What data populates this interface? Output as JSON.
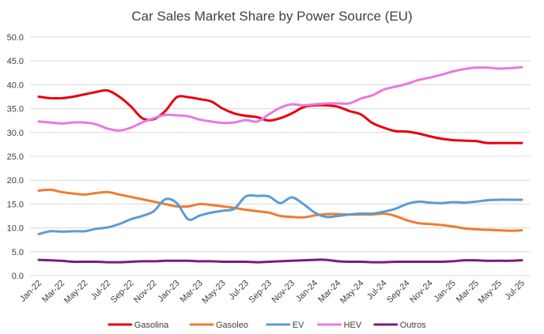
{
  "chart_data": {
    "type": "line",
    "title": "Car Sales Market Share by Power Source (EU)",
    "xlabel": "",
    "ylabel": "",
    "ylim": [
      0,
      50
    ],
    "yticks": [
      "0.0",
      "5.0",
      "10.0",
      "15.0",
      "20.0",
      "25.0",
      "30.0",
      "35.0",
      "40.0",
      "45.0",
      "50.0"
    ],
    "grid": true,
    "legend_position": "bottom",
    "x": [
      "Jan-22",
      "Feb-22",
      "Mar-22",
      "Apr-22",
      "May-22",
      "Jun-22",
      "Jul-22",
      "Aug-22",
      "Sep-22",
      "Oct-22",
      "Nov-22",
      "Dec-22",
      "Jan-23",
      "Feb-23",
      "Mar-23",
      "Apr-23",
      "May-23",
      "Jun-23",
      "Jul-23",
      "Aug-23",
      "Sep-23",
      "Oct-23",
      "Nov-23",
      "Dec-23",
      "Jan-24",
      "Feb-24",
      "Mar-24",
      "Apr-24",
      "May-24",
      "Jun-24",
      "Jul-24",
      "Aug-24",
      "Sep-24",
      "Oct-24",
      "Nov-24",
      "Dec-24",
      "Jan-25",
      "Feb-25",
      "Mar-25",
      "Apr-25",
      "May-25",
      "Jun-25",
      "Jul-25"
    ],
    "x_tick_labels": [
      "Jan-22",
      "Mar-22",
      "May-22",
      "Jul-22",
      "Sep-22",
      "Nov-22",
      "Jan-23",
      "Mar-23",
      "May-23",
      "Jul-23",
      "Sep-23",
      "Nov-23",
      "Jan-24",
      "Mar-24",
      "May-24",
      "Jul-24",
      "Sep-24",
      "Nov-24",
      "Jan-25",
      "Mar-25",
      "May-25",
      "Jul-25"
    ],
    "series": [
      {
        "name": "Gasolina",
        "color": "#e8000b",
        "values": [
          37.5,
          37.2,
          37.2,
          37.5,
          38.0,
          38.5,
          38.8,
          37.5,
          35.5,
          33.0,
          32.8,
          34.5,
          37.4,
          37.4,
          37.0,
          36.5,
          35.0,
          34.0,
          33.5,
          33.2,
          32.5,
          33.0,
          34.0,
          35.3,
          35.7,
          35.7,
          35.4,
          34.5,
          33.8,
          32.0,
          31.0,
          30.3,
          30.2,
          29.8,
          29.2,
          28.7,
          28.4,
          28.3,
          28.2,
          27.8,
          27.8,
          27.8,
          27.8
        ]
      },
      {
        "name": "Gasoleo",
        "color": "#ed7d31",
        "values": [
          17.8,
          18.0,
          17.5,
          17.2,
          17.0,
          17.3,
          17.5,
          17.0,
          16.5,
          16.0,
          15.5,
          15.0,
          14.5,
          14.5,
          15.0,
          14.8,
          14.5,
          14.2,
          13.8,
          13.5,
          13.2,
          12.5,
          12.3,
          12.2,
          12.6,
          12.9,
          12.9,
          12.8,
          12.8,
          12.8,
          13.0,
          12.5,
          11.6,
          11.0,
          10.8,
          10.6,
          10.3,
          9.9,
          9.7,
          9.6,
          9.5,
          9.4,
          9.5
        ]
      },
      {
        "name": "EV",
        "color": "#5b9bd5",
        "values": [
          8.7,
          9.3,
          9.2,
          9.3,
          9.3,
          9.8,
          10.1,
          10.8,
          11.8,
          12.5,
          13.5,
          16.0,
          15.2,
          11.8,
          12.6,
          13.2,
          13.6,
          14.0,
          16.6,
          16.7,
          16.6,
          15.2,
          16.4,
          15.0,
          13.2,
          12.3,
          12.5,
          12.8,
          13.0,
          13.0,
          13.4,
          14.0,
          15.0,
          15.5,
          15.3,
          15.2,
          15.4,
          15.3,
          15.5,
          15.8,
          15.9,
          15.9,
          15.9
        ]
      },
      {
        "name": "HEV",
        "color": "#e879e0",
        "values": [
          32.3,
          32.1,
          31.9,
          32.1,
          32.1,
          31.7,
          30.8,
          30.4,
          31.0,
          32.1,
          33.0,
          33.7,
          33.6,
          33.4,
          32.7,
          32.3,
          32.0,
          32.1,
          32.6,
          32.3,
          33.8,
          35.2,
          35.9,
          35.7,
          35.9,
          36.1,
          36.1,
          36.1,
          37.1,
          37.8,
          39.0,
          39.6,
          40.2,
          41.0,
          41.5,
          42.1,
          42.8,
          43.3,
          43.6,
          43.6,
          43.4,
          43.5,
          43.7
        ]
      },
      {
        "name": "Outros",
        "color": "#7b1c7c",
        "values": [
          3.3,
          3.2,
          3.1,
          2.9,
          2.9,
          2.9,
          2.8,
          2.8,
          2.9,
          3.0,
          3.0,
          3.1,
          3.1,
          3.1,
          3.0,
          3.0,
          2.9,
          2.9,
          2.9,
          2.8,
          2.9,
          3.0,
          3.1,
          3.2,
          3.3,
          3.3,
          3.0,
          2.9,
          2.9,
          2.8,
          2.8,
          2.9,
          2.9,
          2.9,
          2.9,
          2.9,
          3.0,
          3.2,
          3.2,
          3.1,
          3.1,
          3.1,
          3.2
        ]
      }
    ]
  }
}
